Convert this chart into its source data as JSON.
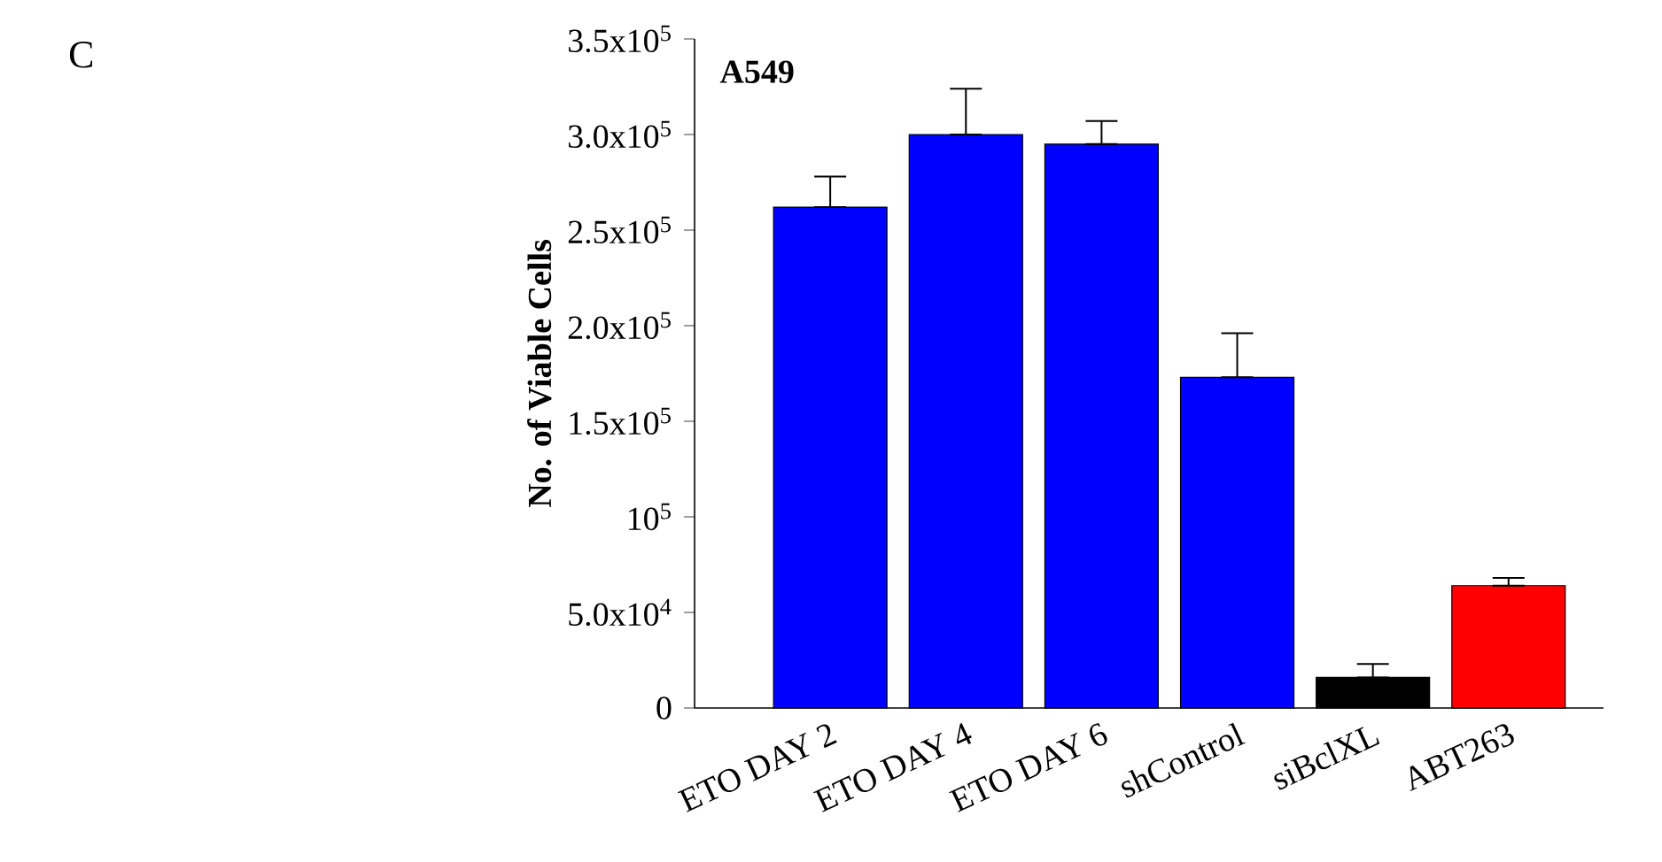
{
  "chart_data": {
    "type": "bar",
    "title": "A549",
    "ylabel": "No. of Viable Cells",
    "annotations": [
      "C"
    ],
    "categories": [
      "ETO DAY 2",
      "ETO DAY 4",
      "ETO DAY 6",
      "shControl",
      "siBclXL",
      "ABT263"
    ],
    "values": [
      262000,
      300000,
      295000,
      173000,
      16000,
      64000
    ],
    "errors": [
      [
        262000,
        278000
      ],
      [
        300000,
        324000
      ],
      [
        295000,
        307000
      ],
      [
        173000,
        196000
      ],
      [
        16000,
        23000
      ],
      [
        64000,
        68000
      ]
    ],
    "colors": [
      "#0000ff",
      "#0000ff",
      "#0000ff",
      "#0000ff",
      "#000000",
      "#ff0000"
    ],
    "ylim": [
      0,
      350000
    ],
    "yticks": [
      {
        "value": 0,
        "label": "0"
      },
      {
        "value": 50000,
        "label": "5.0x10$^{4}$"
      },
      {
        "value": 100000,
        "label": "10$^{5}$"
      },
      {
        "value": 150000,
        "label": "1.5x10$^{5}$"
      },
      {
        "value": 200000,
        "label": "2.0x10$^{5}$"
      },
      {
        "value": 250000,
        "label": "2.5x10$^{5}$"
      },
      {
        "value": 300000,
        "label": "3.0x10$^{5}$"
      },
      {
        "value": 350000,
        "label": "3.5x10$^{5}$"
      }
    ]
  }
}
